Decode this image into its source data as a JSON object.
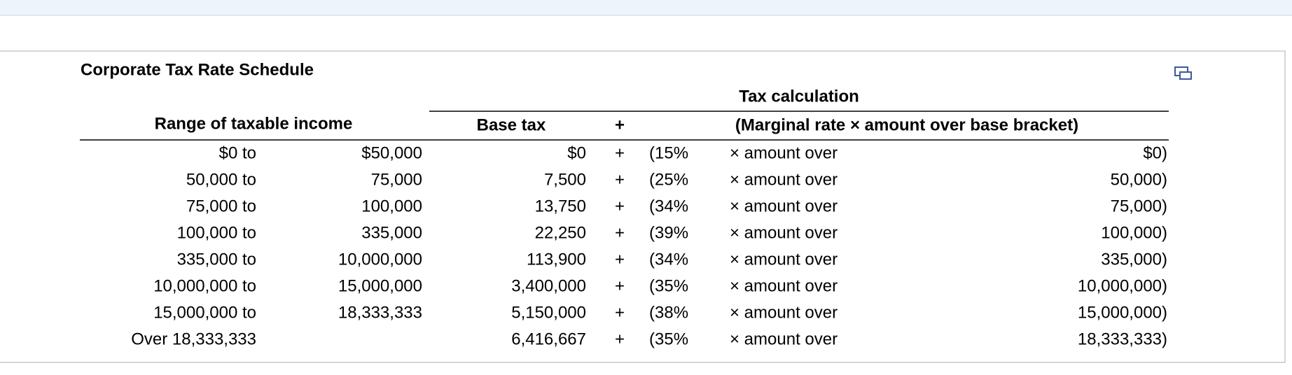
{
  "title": "Corporate Tax Rate Schedule",
  "table": {
    "headers": {
      "group": "Tax calculation",
      "range": "Range of taxable income",
      "base": "Base tax",
      "plus": "+",
      "calc": "(Marginal rate × amount over base bracket)"
    },
    "rows": [
      {
        "from": "$0 to",
        "to": "$50,000",
        "base": "$0",
        "plus": "+",
        "rate": "(15%",
        "over": "× amount over",
        "bracket": "$0)"
      },
      {
        "from": "50,000 to",
        "to": "75,000",
        "base": "7,500",
        "plus": "+",
        "rate": "(25%",
        "over": "× amount over",
        "bracket": "50,000)"
      },
      {
        "from": "75,000 to",
        "to": "100,000",
        "base": "13,750",
        "plus": "+",
        "rate": "(34%",
        "over": "× amount over",
        "bracket": "75,000)"
      },
      {
        "from": "100,000 to",
        "to": "335,000",
        "base": "22,250",
        "plus": "+",
        "rate": "(39%",
        "over": "× amount over",
        "bracket": "100,000)"
      },
      {
        "from": "335,000 to",
        "to": "10,000,000",
        "base": "113,900",
        "plus": "+",
        "rate": "(34%",
        "over": "× amount over",
        "bracket": "335,000)"
      },
      {
        "from": "10,000,000 to",
        "to": "15,000,000",
        "base": "3,400,000",
        "plus": "+",
        "rate": "(35%",
        "over": "× amount over",
        "bracket": "10,000,000)"
      },
      {
        "from": "15,000,000 to",
        "to": "18,333,333",
        "base": "5,150,000",
        "plus": "+",
        "rate": "(38%",
        "over": "× amount over",
        "bracket": "15,000,000)"
      },
      {
        "from": "Over 18,333,333",
        "base": "6,416,667",
        "plus": "+",
        "rate": "(35%",
        "over": "× amount over",
        "bracket": "18,333,333)"
      }
    ]
  }
}
